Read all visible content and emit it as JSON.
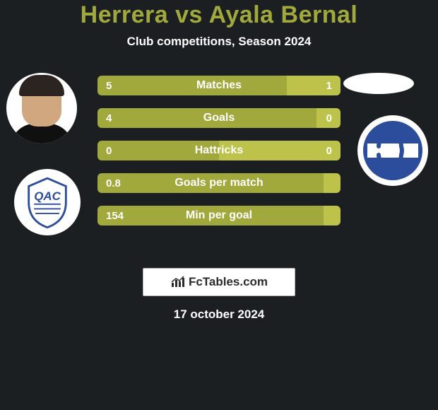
{
  "header": {
    "title": "Herrera vs Ayala Bernal",
    "title_color": "#a1a83c",
    "subtitle": "Club competitions, Season 2024"
  },
  "background_color": "#1c1f22",
  "site": {
    "label": "FcTables.com"
  },
  "date": "17 october 2024",
  "bars": {
    "left_color": "#a1a83c",
    "right_color": "#bcc24a",
    "rows": [
      {
        "label": "Matches",
        "left_value": "5",
        "right_value": "1",
        "left_pct": 78,
        "right_pct": 22
      },
      {
        "label": "Goals",
        "left_value": "4",
        "right_value": "0",
        "left_pct": 90,
        "right_pct": 10
      },
      {
        "label": "Hattricks",
        "left_value": "0",
        "right_value": "0",
        "left_pct": 50,
        "right_pct": 50
      },
      {
        "label": "Goals per match",
        "left_value": "0.8",
        "right_value": "",
        "left_pct": 97,
        "right_pct": 3
      },
      {
        "label": "Min per goal",
        "left_value": "154",
        "right_value": "",
        "left_pct": 97,
        "right_pct": 3
      }
    ]
  },
  "players": {
    "left": {
      "name": "Herrera",
      "club": "Quilmes",
      "club_primary": "#2c4d9b",
      "club_secondary": "#ffffff"
    },
    "right": {
      "name": "Ayala Bernal",
      "club": "Gimnasia",
      "club_primary": "#2c4d9b",
      "club_secondary": "#ffffff"
    }
  }
}
